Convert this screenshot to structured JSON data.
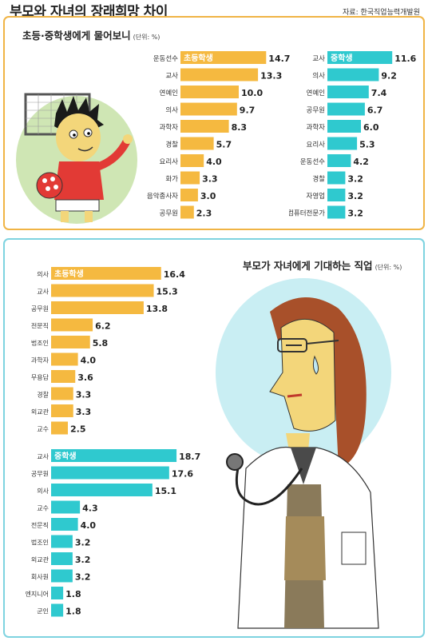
{
  "header": {
    "title": "부모와 자녀의 장래희망 차이",
    "source": "자료: 한국직업능력개발원"
  },
  "colors": {
    "elementary": "#f5b940",
    "middle": "#2fc9cf",
    "top_border": "#f0b445",
    "bottom_border": "#7ed3e0"
  },
  "top_panel": {
    "title": "초등·중학생에게 물어보니",
    "unit": "(단위: %)"
  },
  "bottom_panel": {
    "title": "부모가 자녀에게 기대하는 직업",
    "unit": "(단위: %)"
  },
  "chart_data": [
    {
      "id": "kids-elementary",
      "type": "bar",
      "orientation": "horizontal",
      "series_label": "초등학생",
      "unit": "%",
      "categories": [
        "운동선수",
        "교사",
        "연예인",
        "의사",
        "과학자",
        "경찰",
        "요리사",
        "화가",
        "음악종사자",
        "공무원"
      ],
      "values": [
        14.7,
        13.3,
        10.0,
        9.7,
        8.3,
        5.7,
        4.0,
        3.3,
        3.0,
        2.3
      ],
      "labels": [
        "14.7",
        "13.3",
        "10.0",
        "9.7",
        "8.3",
        "5.7",
        "4.0",
        "3.3",
        "3.0",
        "2.3"
      ]
    },
    {
      "id": "kids-middle",
      "type": "bar",
      "orientation": "horizontal",
      "series_label": "중학생",
      "unit": "%",
      "categories": [
        "교사",
        "의사",
        "연예인",
        "공무원",
        "과학자",
        "요리사",
        "운동선수",
        "경찰",
        "자영업",
        "컴퓨터전문가"
      ],
      "values": [
        11.6,
        9.2,
        7.4,
        6.7,
        6.0,
        5.3,
        4.2,
        3.2,
        3.2,
        3.2
      ],
      "labels": [
        "11.6",
        "9.2",
        "7.4",
        "6.7",
        "6.0",
        "5.3",
        "4.2",
        "3.2",
        "3.2",
        "3.2"
      ]
    },
    {
      "id": "parents-elementary",
      "type": "bar",
      "orientation": "horizontal",
      "series_label": "초등학생",
      "unit": "%",
      "categories": [
        "의사",
        "교사",
        "공무원",
        "전문직",
        "법조인",
        "과학자",
        "무용답",
        "경찰",
        "외교관",
        "교수"
      ],
      "values": [
        16.4,
        15.3,
        13.8,
        6.2,
        5.8,
        4.0,
        3.6,
        3.3,
        3.3,
        2.5
      ],
      "labels": [
        "16.4",
        "15.3",
        "13.8",
        "6.2",
        "5.8",
        "4.0",
        "3.6",
        "3.3",
        "3.3",
        "2.5"
      ]
    },
    {
      "id": "parents-middle",
      "type": "bar",
      "orientation": "horizontal",
      "series_label": "중학생",
      "unit": "%",
      "categories": [
        "교사",
        "공무원",
        "의사",
        "교수",
        "전문직",
        "법조인",
        "외교관",
        "회사원",
        "엔지니어",
        "군인"
      ],
      "values": [
        18.7,
        17.6,
        15.1,
        4.3,
        4.0,
        3.2,
        3.2,
        3.2,
        1.8,
        1.8
      ],
      "labels": [
        "18.7",
        "17.6",
        "15.1",
        "4.3",
        "4.0",
        "3.2",
        "3.2",
        "3.2",
        "1.8",
        "1.8"
      ]
    }
  ]
}
